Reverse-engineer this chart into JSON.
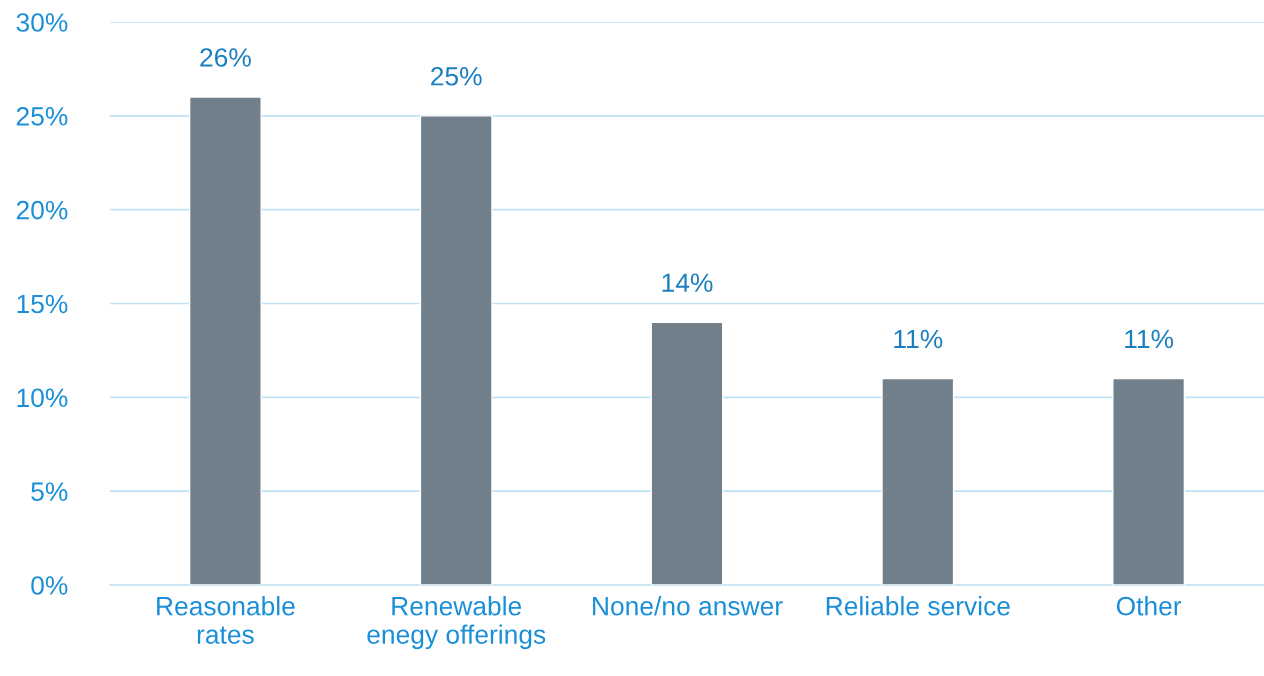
{
  "chart_data": {
    "type": "bar",
    "categories": [
      "Reasonable\nrates",
      "Renewable\nenegy offerings",
      "None/no answer",
      "Reliable service",
      "Other"
    ],
    "values": [
      26,
      25,
      14,
      11,
      11
    ],
    "color": "#717f8a",
    "value_labels": [
      "26%",
      "25%",
      "14%",
      "11%",
      "11%"
    ],
    "ylim": [
      0,
      30
    ],
    "yticks": [
      {
        "value": 0,
        "label": "0%"
      },
      {
        "value": 5,
        "label": "5%"
      },
      {
        "value": 10,
        "label": "10%"
      },
      {
        "value": 15,
        "label": "15%"
      },
      {
        "value": 20,
        "label": "20%"
      },
      {
        "value": 25,
        "label": "25%"
      },
      {
        "value": 30,
        "label": "30%"
      }
    ],
    "grid": "y",
    "legend": false
  }
}
